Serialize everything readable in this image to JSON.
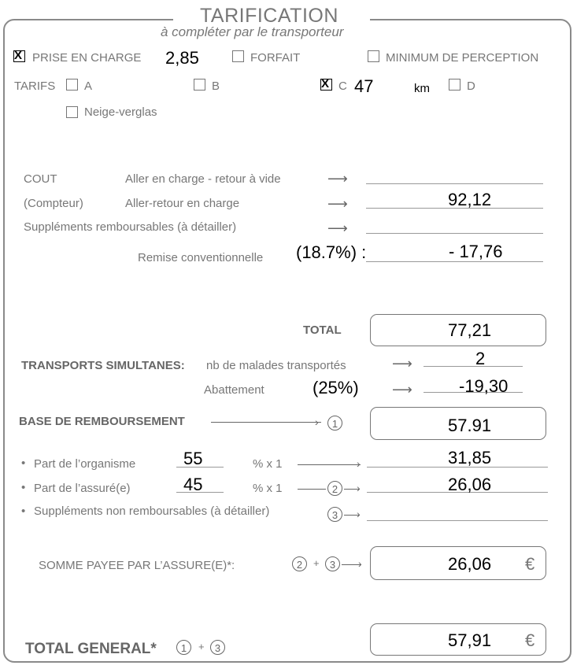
{
  "header": {
    "title": "TARIFICATION",
    "subtitle": "à compléter par le transporteur"
  },
  "prise": {
    "label": "PRISE EN CHARGE",
    "checked": true,
    "value": "2,85"
  },
  "forfait": {
    "label": "FORFAIT",
    "checked": false
  },
  "minimum": {
    "label": "MINIMUM DE PERCEPTION",
    "checked": false
  },
  "tarifs": {
    "label": "TARIFS",
    "a": "A",
    "b": "B",
    "c": "C",
    "d": "D",
    "c_checked": true,
    "km_value": "47",
    "km_unit": "km",
    "neige": "Neige-verglas"
  },
  "cout": {
    "label1": "COUT",
    "label2": "(Compteur)",
    "aller_vide": "Aller en charge - retour à vide",
    "aller_retour": "Aller-retour en charge",
    "aller_retour_value": "92,12",
    "supplements": "Suppléments remboursables (à détailler)",
    "remise_label": "Remise conventionnelle",
    "remise_pct": "(18.7%) :",
    "remise_value": "- 17,76"
  },
  "total": {
    "label": "TOTAL",
    "value": "77,21"
  },
  "simultanes": {
    "label": "TRANSPORTS SIMULTANES:",
    "nb_label": "nb de malades transportés",
    "nb_value": "2",
    "abattement_label": "Abattement",
    "abattement_pct": "(25%)",
    "abattement_value": "-19,30"
  },
  "base": {
    "label": "BASE DE REMBOURSEMENT",
    "num": "1",
    "value": "57.91"
  },
  "parts": {
    "organisme_label": "Part de l’organisme",
    "organisme_pct": "55",
    "organisme_value": "31,85",
    "assure_label": "Part de l’assuré(e)",
    "assure_pct": "45",
    "assure_value": "26,06",
    "pct_x": "% x 1",
    "supp_label": "Suppléments non remboursables (à détailler)",
    "num2": "2",
    "num3": "3"
  },
  "somme": {
    "label": "SOMME PAYEE PAR L’ASSURE(E)*:",
    "value": "26,06",
    "plus": "+"
  },
  "total_general": {
    "label": "TOTAL GENERAL*",
    "value": "57,91",
    "plus": "+"
  },
  "currency": "€",
  "bullet": "•",
  "arrow_glyph": "⟶"
}
